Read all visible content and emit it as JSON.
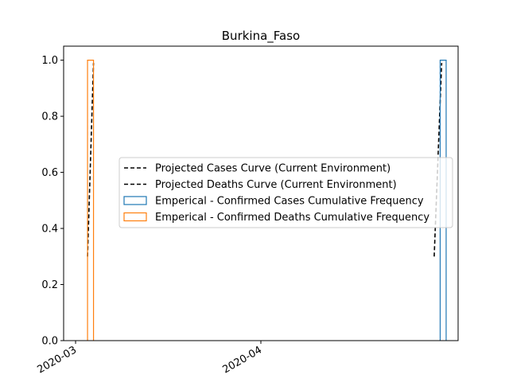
{
  "chart_data": {
    "type": "line",
    "title": "Burkina_Faso",
    "xlabel": "",
    "ylabel": "",
    "x_axis": {
      "type": "date",
      "range": [
        "2020-02-28",
        "2020-05-04"
      ],
      "ticks": [
        {
          "value": "2020-03-01",
          "label": "2020-03"
        },
        {
          "value": "2020-04-01",
          "label": "2020-04"
        }
      ]
    },
    "ylim": [
      0,
      1.05
    ],
    "yticks": [
      "0.0",
      "0.2",
      "0.4",
      "0.6",
      "0.8",
      "1.0"
    ],
    "grid": false,
    "legend_position": "center-right",
    "series": [
      {
        "name": "Projected Cases Curve (Current Environment)",
        "kind": "line",
        "style": "dashed",
        "color": "#000000",
        "points": [
          [
            "2020-04-30T00:00",
            0.3
          ],
          [
            "2020-05-01T06:00",
            0.99
          ]
        ]
      },
      {
        "name": "Projected Deaths Curve (Current Environment)",
        "kind": "line",
        "style": "dashed",
        "color": "#000000",
        "points": [
          [
            "2020-03-03T00:00",
            0.3
          ],
          [
            "2020-03-04T00:00",
            0.99
          ]
        ]
      },
      {
        "name": "Emperical - Confirmed Cases Cumulative Frequency",
        "kind": "step-histogram",
        "color": "#1f77b4",
        "bins": [
          {
            "start": "2020-04-30",
            "end": "2020-05-01",
            "value": 0
          },
          {
            "start": "2020-05-01",
            "end": "2020-05-02",
            "value": 1.0
          }
        ]
      },
      {
        "name": "Emperical - Confirmed Deaths Cumulative Frequency",
        "kind": "step-histogram",
        "color": "#ff7f0e",
        "bins": [
          {
            "start": "2020-03-03",
            "end": "2020-03-04",
            "value": 1.0
          }
        ]
      }
    ]
  }
}
